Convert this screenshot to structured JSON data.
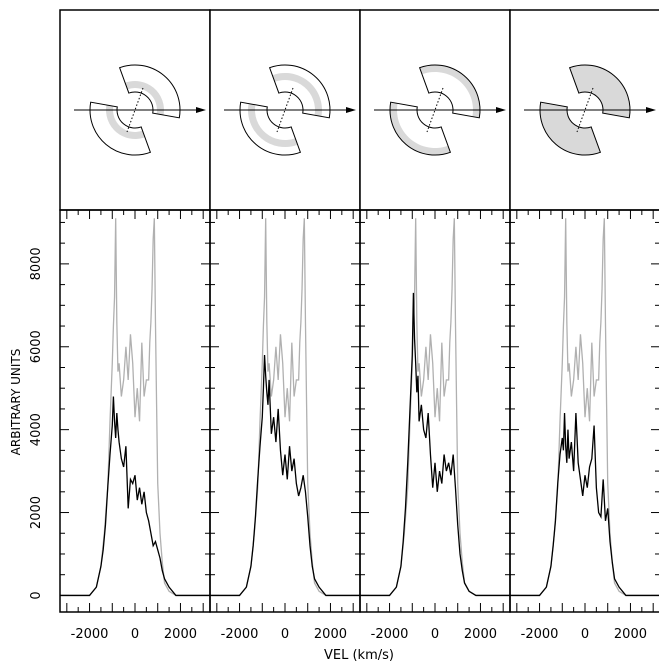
{
  "chart_data": {
    "type": "line",
    "xlabel": "VEL (km/s)",
    "ylabel": "ARBITRARY UNITS",
    "xlim": [
      -3300,
      3300
    ],
    "ylim": [
      -400,
      9300
    ],
    "xticks": [
      -2000,
      0,
      2000
    ],
    "yticks": [
      0,
      2000,
      4000,
      6000,
      8000
    ],
    "xtick_labels": [
      "-2000",
      "0",
      "2000"
    ],
    "ytick_labels": [
      "0",
      "2000",
      "4000",
      "6000",
      "8000"
    ],
    "colors": {
      "gray_series": "#b0b0b0",
      "black_series": "#000000",
      "shade": "#d9d9d9"
    },
    "panels": [
      {
        "diagram_shading": "inner ring band",
        "gray_series": {
          "x": [
            -3300,
            -2000,
            -1700,
            -1500,
            -1350,
            -1200,
            -1100,
            -1000,
            -950,
            -900,
            -850,
            -800,
            -750,
            -700,
            -600,
            -500,
            -400,
            -300,
            -200,
            -100,
            0,
            100,
            200,
            300,
            400,
            500,
            600,
            650,
            700,
            750,
            800,
            850,
            900,
            950,
            1000,
            1100,
            1200,
            1300,
            1500,
            1800,
            3300
          ],
          "y": [
            0,
            0,
            200,
            700,
            1500,
            2600,
            4200,
            5600,
            6500,
            7200,
            9100,
            6600,
            5400,
            5600,
            4800,
            5200,
            6000,
            5200,
            6300,
            5600,
            4300,
            5000,
            4200,
            6100,
            4800,
            5200,
            5200,
            6100,
            6600,
            7400,
            8600,
            9100,
            6600,
            4600,
            2700,
            1500,
            800,
            300,
            100,
            0,
            0
          ]
        },
        "black_series": {
          "x": [
            -3300,
            -2000,
            -1700,
            -1500,
            -1400,
            -1300,
            -1200,
            -1100,
            -1000,
            -950,
            -900,
            -850,
            -800,
            -750,
            -700,
            -600,
            -500,
            -400,
            -300,
            -200,
            -100,
            0,
            100,
            200,
            300,
            400,
            500,
            600,
            700,
            800,
            900,
            1000,
            1100,
            1200,
            1300,
            1500,
            1800,
            3300
          ],
          "y": [
            0,
            0,
            200,
            700,
            1100,
            1700,
            2600,
            3400,
            4100,
            4800,
            4200,
            3800,
            4400,
            4000,
            3700,
            3300,
            3100,
            3600,
            2100,
            2800,
            2700,
            2900,
            2300,
            2600,
            2200,
            2500,
            2000,
            1800,
            1500,
            1200,
            1300,
            1100,
            900,
            600,
            400,
            200,
            0,
            0
          ]
        }
      },
      {
        "diagram_shading": "middle ring band",
        "gray_series": {
          "x": [
            -3300,
            -2000,
            -1700,
            -1500,
            -1350,
            -1200,
            -1100,
            -1000,
            -950,
            -900,
            -850,
            -800,
            -750,
            -700,
            -600,
            -500,
            -400,
            -300,
            -200,
            -100,
            0,
            100,
            200,
            300,
            400,
            500,
            600,
            650,
            700,
            750,
            800,
            850,
            900,
            950,
            1000,
            1100,
            1200,
            1300,
            1500,
            1800,
            3300
          ],
          "y": [
            0,
            0,
            200,
            700,
            1500,
            2600,
            4200,
            5600,
            6500,
            7200,
            9100,
            6600,
            5400,
            5600,
            4800,
            5200,
            6000,
            5200,
            6300,
            5600,
            4300,
            5000,
            4200,
            6100,
            4800,
            5200,
            5200,
            6100,
            6600,
            7400,
            8600,
            9100,
            6600,
            4600,
            2700,
            1500,
            800,
            300,
            100,
            0,
            0
          ]
        },
        "black_series": {
          "x": [
            -3300,
            -2000,
            -1700,
            -1500,
            -1400,
            -1300,
            -1200,
            -1100,
            -1000,
            -950,
            -900,
            -850,
            -800,
            -750,
            -700,
            -600,
            -500,
            -400,
            -300,
            -200,
            -100,
            0,
            100,
            200,
            300,
            400,
            500,
            600,
            700,
            800,
            900,
            1000,
            1100,
            1200,
            1300,
            1500,
            1800,
            3300
          ],
          "y": [
            0,
            0,
            200,
            700,
            1200,
            1900,
            2800,
            3600,
            4300,
            5000,
            5800,
            5300,
            4900,
            4600,
            5200,
            3900,
            4300,
            3700,
            4500,
            3500,
            2900,
            3400,
            2800,
            3600,
            3000,
            3300,
            2700,
            2400,
            2600,
            2900,
            2500,
            1900,
            1200,
            700,
            400,
            200,
            0,
            0
          ]
        }
      },
      {
        "diagram_shading": "outer ring band",
        "gray_series": {
          "x": [
            -3300,
            -2000,
            -1700,
            -1500,
            -1350,
            -1200,
            -1100,
            -1000,
            -950,
            -900,
            -850,
            -800,
            -750,
            -700,
            -600,
            -500,
            -400,
            -300,
            -200,
            -100,
            0,
            100,
            200,
            300,
            400,
            500,
            600,
            650,
            700,
            750,
            800,
            850,
            900,
            950,
            1000,
            1100,
            1200,
            1300,
            1500,
            1800,
            3300
          ],
          "y": [
            0,
            0,
            200,
            700,
            1500,
            2600,
            4200,
            5600,
            6500,
            7200,
            9100,
            6600,
            5400,
            5600,
            4800,
            5200,
            6000,
            5200,
            6300,
            5600,
            4300,
            5000,
            4200,
            6100,
            4800,
            5200,
            5200,
            6100,
            6600,
            7400,
            8600,
            9100,
            6600,
            4600,
            2700,
            1500,
            800,
            300,
            100,
            0,
            0
          ]
        },
        "black_series": {
          "x": [
            -3300,
            -2000,
            -1700,
            -1500,
            -1400,
            -1300,
            -1200,
            -1100,
            -1000,
            -950,
            -900,
            -850,
            -800,
            -750,
            -700,
            -600,
            -500,
            -400,
            -300,
            -200,
            -100,
            0,
            100,
            200,
            300,
            400,
            500,
            600,
            700,
            800,
            900,
            1000,
            1100,
            1200,
            1300,
            1500,
            1800,
            3300
          ],
          "y": [
            0,
            0,
            200,
            700,
            1300,
            2100,
            3200,
            4500,
            5800,
            7300,
            6200,
            5600,
            4900,
            5300,
            4200,
            4600,
            4000,
            3800,
            4400,
            3400,
            2600,
            3200,
            2500,
            3000,
            2700,
            3400,
            3000,
            3200,
            2900,
            3400,
            2600,
            1700,
            1000,
            600,
            300,
            100,
            0,
            0
          ]
        }
      },
      {
        "diagram_shading": "full outer sector",
        "gray_series": {
          "x": [
            -3300,
            -2000,
            -1700,
            -1500,
            -1350,
            -1200,
            -1100,
            -1000,
            -950,
            -900,
            -850,
            -800,
            -750,
            -700,
            -600,
            -500,
            -400,
            -300,
            -200,
            -100,
            0,
            100,
            200,
            300,
            400,
            500,
            600,
            650,
            700,
            750,
            800,
            850,
            900,
            950,
            1000,
            1100,
            1200,
            1300,
            1500,
            1800,
            3300
          ],
          "y": [
            0,
            0,
            200,
            700,
            1500,
            2600,
            4200,
            5600,
            6500,
            7200,
            9100,
            6600,
            5400,
            5600,
            4800,
            5200,
            6000,
            5200,
            6300,
            5600,
            4300,
            5000,
            4200,
            6100,
            4800,
            5200,
            5200,
            6100,
            6600,
            7400,
            8600,
            9100,
            6600,
            4600,
            2700,
            1500,
            800,
            300,
            100,
            0,
            0
          ]
        },
        "black_series": {
          "x": [
            -3300,
            -2000,
            -1700,
            -1500,
            -1400,
            -1300,
            -1200,
            -1100,
            -1000,
            -950,
            -900,
            -850,
            -800,
            -750,
            -700,
            -600,
            -500,
            -400,
            -300,
            -200,
            -100,
            0,
            100,
            200,
            300,
            400,
            500,
            600,
            700,
            800,
            900,
            1000,
            1100,
            1200,
            1300,
            1500,
            1800,
            3300
          ],
          "y": [
            0,
            0,
            200,
            700,
            1200,
            1800,
            2700,
            3400,
            3800,
            3500,
            4400,
            3600,
            3200,
            4000,
            3300,
            3700,
            3000,
            4400,
            3200,
            2800,
            2400,
            2900,
            2600,
            3100,
            3300,
            4100,
            2600,
            2000,
            1900,
            2800,
            1800,
            2100,
            1300,
            800,
            400,
            200,
            0,
            0
          ]
        }
      }
    ]
  }
}
